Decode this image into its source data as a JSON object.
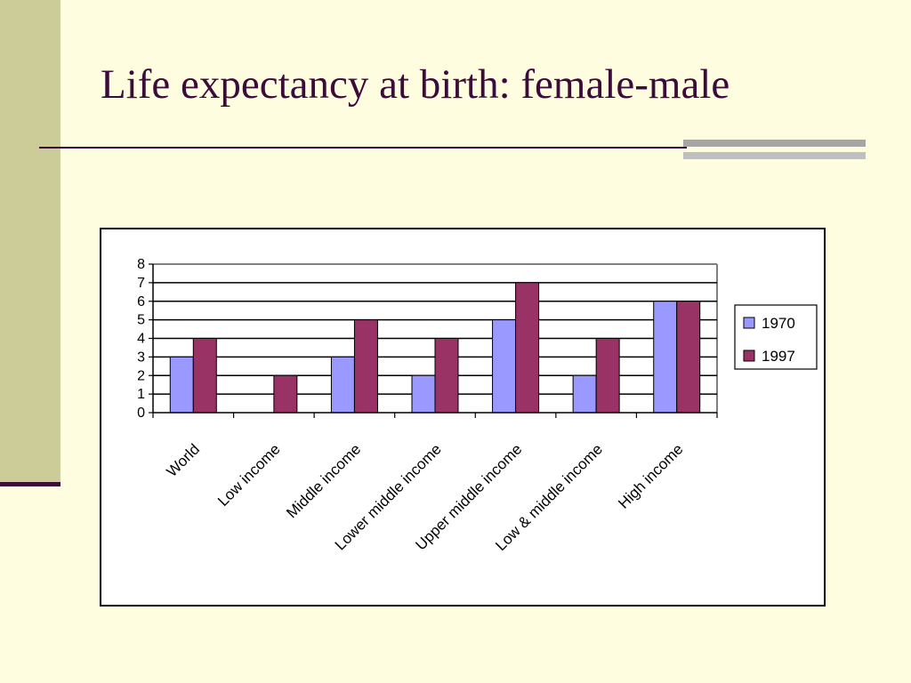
{
  "slide": {
    "title": "Life expectancy at birth: female-male"
  },
  "colors": {
    "background": "#FFFDE0",
    "sidebar": "#CCCC99",
    "accent": "#3D0B3A",
    "series_1970": "#9999FF",
    "series_1997": "#993366"
  },
  "chart_data": {
    "type": "bar",
    "title": "",
    "xlabel": "",
    "ylabel": "",
    "categories": [
      "World",
      "Low income",
      "Middle income",
      "Lower middle income",
      "Upper middle income",
      "Low & middle income",
      "High income"
    ],
    "series": [
      {
        "name": "1970",
        "values": [
          3,
          0,
          3,
          2,
          5,
          2,
          6
        ]
      },
      {
        "name": "1997",
        "values": [
          4,
          2,
          5,
          4,
          7,
          4,
          6
        ]
      }
    ],
    "ylim": [
      0,
      8
    ],
    "yticks": [
      0,
      1,
      2,
      3,
      4,
      5,
      6,
      7,
      8
    ],
    "grid": true,
    "legend": "right"
  }
}
